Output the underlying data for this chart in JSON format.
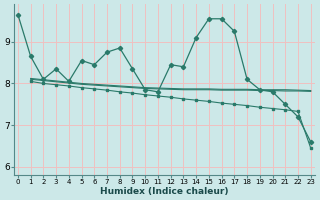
{
  "bg_color": "#cce8e8",
  "grid_color": "#f0c0c0",
  "line_color": "#2a7a6a",
  "xlabel": "Humidex (Indice chaleur)",
  "x_ticks": [
    0,
    1,
    2,
    3,
    4,
    5,
    6,
    7,
    8,
    9,
    10,
    11,
    12,
    13,
    14,
    15,
    16,
    17,
    18,
    19,
    20,
    21,
    22,
    23
  ],
  "ylim": [
    5.8,
    9.9
  ],
  "yticks": [
    6,
    7,
    8,
    9
  ],
  "xlim": [
    -0.3,
    23.3
  ],
  "series1_x": [
    0,
    1,
    2,
    3,
    4,
    5,
    6,
    7,
    8,
    9,
    10,
    11,
    12,
    13,
    14,
    15,
    16,
    17,
    18,
    19,
    20,
    21,
    22,
    23
  ],
  "series1_y": [
    9.65,
    8.65,
    8.1,
    8.35,
    8.05,
    8.55,
    8.45,
    8.75,
    8.85,
    8.35,
    7.85,
    7.8,
    8.45,
    8.4,
    9.1,
    9.55,
    9.55,
    9.25,
    8.1,
    7.85,
    7.8,
    7.5,
    7.2,
    6.6
  ],
  "series2_x": [
    1,
    2,
    3,
    4,
    5,
    6,
    7,
    8,
    9,
    10,
    11,
    12,
    13,
    14,
    15,
    16,
    17,
    18,
    19,
    20,
    21,
    22,
    23
  ],
  "series2_y": [
    8.05,
    8.0,
    7.97,
    7.94,
    7.9,
    7.87,
    7.84,
    7.8,
    7.77,
    7.73,
    7.7,
    7.67,
    7.63,
    7.6,
    7.57,
    7.53,
    7.5,
    7.47,
    7.43,
    7.4,
    7.37,
    7.33,
    6.45
  ],
  "series3_x": [
    1,
    2,
    3,
    4,
    5,
    6,
    7,
    8,
    9,
    10,
    11,
    12,
    13,
    14,
    15,
    16,
    17,
    18,
    19,
    20,
    21,
    22,
    23
  ],
  "series3_y": [
    8.1,
    8.07,
    8.04,
    8.01,
    7.98,
    7.96,
    7.94,
    7.92,
    7.9,
    7.88,
    7.87,
    7.86,
    7.85,
    7.85,
    7.85,
    7.84,
    7.84,
    7.84,
    7.83,
    7.83,
    7.82,
    7.82,
    7.81
  ],
  "series4_x": [
    1,
    2,
    3,
    4,
    5,
    6,
    7,
    8,
    9,
    10,
    11,
    12,
    13,
    14,
    15,
    16,
    17,
    18,
    19,
    20,
    21,
    22,
    23
  ],
  "series4_y": [
    8.12,
    8.09,
    8.06,
    8.03,
    8.0,
    7.98,
    7.96,
    7.94,
    7.92,
    7.9,
    7.89,
    7.88,
    7.87,
    7.87,
    7.87,
    7.86,
    7.86,
    7.86,
    7.85,
    7.85,
    7.85,
    7.84,
    7.83
  ]
}
